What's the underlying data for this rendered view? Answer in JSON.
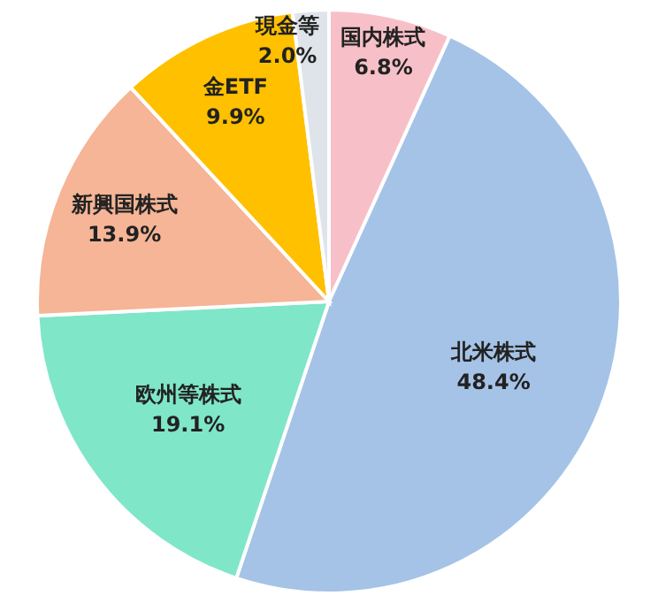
{
  "chart_data": {
    "type": "pie",
    "categories": [
      "国内株式",
      "北米株式",
      "欧州等株式",
      "新興国株式",
      "金ETF",
      "現金等"
    ],
    "values": [
      6.8,
      48.4,
      19.1,
      13.9,
      9.9,
      2.0
    ],
    "colors": [
      "#f7c0c8",
      "#a5c3e6",
      "#7fe6c8",
      "#f5b596",
      "#ffc000",
      "#dfe4ea"
    ],
    "value_labels": [
      "6.8%",
      "48.4%",
      "19.1%",
      "13.9%",
      "9.9%",
      "2.0%"
    ]
  }
}
